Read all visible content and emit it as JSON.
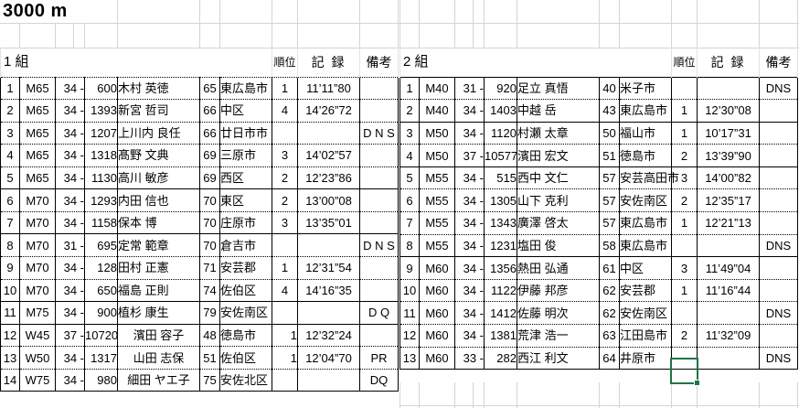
{
  "title": "3000 m",
  "selection_color": "#217346",
  "tables": [
    {
      "group_label": "1 組",
      "headers": {
        "rank": "順位",
        "record": "記 録",
        "remarks": "備考"
      },
      "rows": [
        {
          "no": "1",
          "cls": "M65",
          "pref": "34 -",
          "bib": "600",
          "name": "木村  英徳",
          "age": "65",
          "city": "東広島市",
          "rank": "1",
          "record": "11’11”80",
          "remarks": "",
          "sep": "dotted"
        },
        {
          "no": "2",
          "cls": "M65",
          "pref": "34 -",
          "bib": "1393",
          "name": "新宮  哲司",
          "age": "66",
          "city": "中区",
          "rank": "4",
          "record": "14’26”72",
          "remarks": "",
          "sep": "dotted"
        },
        {
          "no": "3",
          "cls": "M65",
          "pref": "34 -",
          "bib": "1207",
          "name": "上川内  良任",
          "age": "66",
          "city": "廿日市市",
          "rank": "",
          "record": "",
          "remarks": "D N S",
          "sep": "dotted"
        },
        {
          "no": "4",
          "cls": "M65",
          "pref": "34 -",
          "bib": "1318",
          "name": "髙野  文典",
          "age": "69",
          "city": "三原市",
          "rank": "3",
          "record": "14’02”57",
          "remarks": "",
          "sep": "dotted"
        },
        {
          "no": "5",
          "cls": "M65",
          "pref": "34 -",
          "bib": "1130",
          "name": "高川  敏彦",
          "age": "69",
          "city": "西区",
          "rank": "2",
          "record": "12’23”86",
          "remarks": "",
          "sep": "dotted"
        },
        {
          "no": "6",
          "cls": "M70",
          "pref": "34 -",
          "bib": "1293",
          "name": "内田  信也",
          "age": "70",
          "city": "東区",
          "rank": "2",
          "record": "13’00”08",
          "remarks": "",
          "sep": "solid"
        },
        {
          "no": "7",
          "cls": "M70",
          "pref": "34 -",
          "bib": "1158",
          "name": "保本  博",
          "age": "70",
          "city": "庄原市",
          "rank": "3",
          "record": "13’35”01",
          "remarks": "",
          "sep": "dotted"
        },
        {
          "no": "8",
          "cls": "M70",
          "pref": "31 -",
          "bib": "695",
          "name": "定常  範章",
          "age": "70",
          "city": "倉吉市",
          "rank": "",
          "record": "",
          "remarks": "D N S",
          "sep": "solid"
        },
        {
          "no": "9",
          "cls": "M70",
          "pref": "34 -",
          "bib": "128",
          "name": "田村  正憲",
          "age": "71",
          "city": "安芸郡",
          "rank": "1",
          "record": "12’31”54",
          "remarks": "",
          "sep": "dotted"
        },
        {
          "no": "10",
          "cls": "M70",
          "pref": "34 -",
          "bib": "650",
          "name": "福島  正則",
          "age": "74",
          "city": "佐伯区",
          "rank": "4",
          "record": "14’16”35",
          "remarks": "",
          "sep": "dotted"
        },
        {
          "no": "11",
          "cls": "M75",
          "pref": "34 -",
          "bib": "900",
          "name": "植杉  康生",
          "age": "79",
          "city": "安佐南区",
          "rank": "",
          "record": "",
          "remarks": "D Q",
          "sep": "solid"
        },
        {
          "no": "12",
          "cls": "W45",
          "pref": "37 -",
          "bib": "10720",
          "bib_small": true,
          "name": "濱田  容子",
          "name_center": true,
          "age": "48",
          "city": "徳島市",
          "rank": "1",
          "rank_right": true,
          "record": "12’32”24",
          "remarks": "",
          "sep": "solid"
        },
        {
          "no": "13",
          "cls": "W50",
          "pref": "34 -",
          "bib": "1317",
          "name": "山田  志保",
          "name_center": true,
          "age": "51",
          "city": "佐伯区",
          "rank": "1",
          "rank_right": true,
          "record": "12’04”70",
          "remarks": "PR",
          "sep": "dotted"
        },
        {
          "no": "14",
          "cls": "W75",
          "pref": "34 -",
          "bib": "980",
          "name": "細田  ヤエ子",
          "name_center": true,
          "age": "75",
          "city": "安佐北区",
          "rank": "",
          "record": "",
          "remarks": "DQ",
          "sep": "dotted"
        }
      ]
    },
    {
      "group_label": "2 組",
      "headers": {
        "rank": "順位",
        "record": "記 録",
        "remarks": "備考"
      },
      "rows": [
        {
          "no": "1",
          "cls": "M40",
          "pref": "31 -",
          "bib": "920",
          "name": "足立  真悟",
          "age": "40",
          "city": "米子市",
          "rank": "",
          "record": "",
          "remarks": "DNS",
          "sep": "solid"
        },
        {
          "no": "2",
          "cls": "M40",
          "pref": "34 -",
          "bib": "1403",
          "name": "中越  岳",
          "age": "43",
          "city": "東広島市",
          "rank": "1",
          "record": "12’30”08",
          "remarks": "",
          "sep": "dotted"
        },
        {
          "no": "3",
          "cls": "M50",
          "pref": "34 -",
          "bib": "1120",
          "name": "村瀬  太章",
          "age": "50",
          "city": "福山市",
          "rank": "1",
          "record": "10’17”31",
          "remarks": "",
          "sep": "solid"
        },
        {
          "no": "4",
          "cls": "M50",
          "pref": "37 -",
          "bib": "10577",
          "bib_small": true,
          "name": "濱田  宏文",
          "age": "51",
          "city": "徳島市",
          "rank": "2",
          "record": "13’39”90",
          "remarks": "",
          "sep": "dotted"
        },
        {
          "no": "5",
          "cls": "M55",
          "pref": "34 -",
          "bib": "515",
          "name": "西中  文仁",
          "age": "57",
          "city": "安芸高田市",
          "city_small": true,
          "rank": "3",
          "record": "14’00”82",
          "remarks": "",
          "sep": "solid"
        },
        {
          "no": "6",
          "cls": "M55",
          "pref": "34 -",
          "bib": "1305",
          "name": "山下  克利",
          "age": "57",
          "city": "安佐南区",
          "rank": "2",
          "record": "12’35”17",
          "remarks": "",
          "sep": "dotted"
        },
        {
          "no": "7",
          "cls": "M55",
          "pref": "34 -",
          "bib": "1343",
          "name": "廣澤  啓太",
          "age": "57",
          "city": "東広島市",
          "rank": "1",
          "record": "12’21”13",
          "remarks": "",
          "sep": "dotted"
        },
        {
          "no": "8",
          "cls": "M55",
          "pref": "34 -",
          "bib": "1231",
          "name": "塩田  俊",
          "age": "58",
          "city": "東広島市",
          "rank": "",
          "record": "",
          "remarks": "DNS",
          "sep": "dotted"
        },
        {
          "no": "9",
          "cls": "M60",
          "pref": "34 -",
          "bib": "1356",
          "name": "熱田  弘通",
          "age": "61",
          "city": "中区",
          "rank": "3",
          "record": "11’49”04",
          "remarks": "",
          "sep": "solid"
        },
        {
          "no": "10",
          "cls": "M60",
          "pref": "34 -",
          "bib": "1122",
          "name": "伊藤  邦彦",
          "age": "62",
          "city": "安芸郡",
          "rank": "1",
          "record": "11’16”44",
          "remarks": "",
          "sep": "dotted"
        },
        {
          "no": "11",
          "cls": "M60",
          "pref": "34 -",
          "bib": "1412",
          "name": "佐藤  明次",
          "age": "62",
          "city": "安佐南区",
          "rank": "",
          "record": "",
          "remarks": "DNS",
          "sep": "dotted"
        },
        {
          "no": "12",
          "cls": "M60",
          "pref": "34 -",
          "bib": "1381",
          "name": "荒津  浩一",
          "age": "63",
          "city": "江田島市",
          "rank": "2",
          "record": "11’32”09",
          "remarks": "",
          "sep": "dotted"
        },
        {
          "no": "13",
          "cls": "M60",
          "pref": "33 -",
          "bib": "282",
          "name": "西江  利文",
          "age": "64",
          "city": "井原市",
          "rank": "",
          "record": "",
          "remarks": "DNS",
          "sep": "dotted",
          "selected": "rank"
        }
      ]
    }
  ]
}
